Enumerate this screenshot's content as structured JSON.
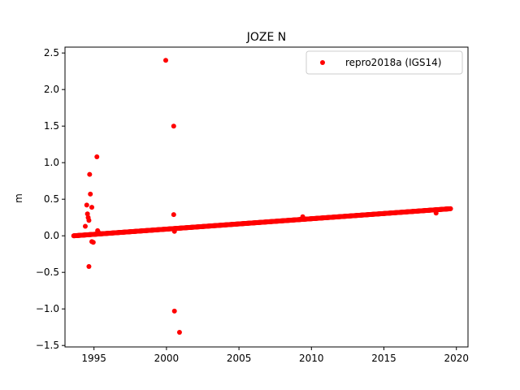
{
  "chart_data": {
    "type": "scatter",
    "title": "JOZE N",
    "xlabel": "",
    "ylabel": "m",
    "xlim": [
      1993.0,
      2020.8
    ],
    "ylim": [
      -1.52,
      2.58
    ],
    "xticks": [
      1995,
      2000,
      2005,
      2010,
      2015,
      2020
    ],
    "xtick_labels": [
      "1995",
      "2000",
      "2005",
      "2010",
      "2015",
      "2020"
    ],
    "yticks": [
      -1.5,
      -1.0,
      -0.5,
      0.0,
      0.5,
      1.0,
      1.5,
      2.0,
      2.5
    ],
    "ytick_labels": [
      "−1.5",
      "−1.0",
      "−0.5",
      "0.0",
      "0.5",
      "1.0",
      "1.5",
      "2.0",
      "2.5"
    ],
    "grid": false,
    "legend_position": "top-right",
    "series": [
      {
        "name": "repro2018a (IGS14)",
        "color": "#ff0000",
        "marker": "circle",
        "trend": {
          "x_start": 1993.6,
          "x_end": 2019.6,
          "y_start": 0.0,
          "y_end": 0.37
        },
        "points": [
          {
            "x": 1994.55,
            "y": 0.3
          },
          {
            "x": 1994.6,
            "y": 0.25
          },
          {
            "x": 1994.65,
            "y": 0.21
          },
          {
            "x": 1994.7,
            "y": 0.84
          },
          {
            "x": 1994.75,
            "y": 0.57
          },
          {
            "x": 1994.5,
            "y": 0.42
          },
          {
            "x": 1994.85,
            "y": 0.39
          },
          {
            "x": 1994.4,
            "y": 0.13
          },
          {
            "x": 1994.65,
            "y": -0.42
          },
          {
            "x": 1994.85,
            "y": -0.08
          },
          {
            "x": 1994.95,
            "y": -0.09
          },
          {
            "x": 1995.2,
            "y": 1.08
          },
          {
            "x": 1995.25,
            "y": 0.07
          },
          {
            "x": 1995.3,
            "y": 0.05
          },
          {
            "x": 1999.95,
            "y": 2.4
          },
          {
            "x": 2000.5,
            "y": 1.5
          },
          {
            "x": 2000.5,
            "y": 0.29
          },
          {
            "x": 2000.55,
            "y": 0.06
          },
          {
            "x": 2000.55,
            "y": -1.03
          },
          {
            "x": 2000.9,
            "y": -1.32
          },
          {
            "x": 2009.4,
            "y": 0.26
          },
          {
            "x": 2018.6,
            "y": 0.31
          }
        ]
      }
    ]
  }
}
